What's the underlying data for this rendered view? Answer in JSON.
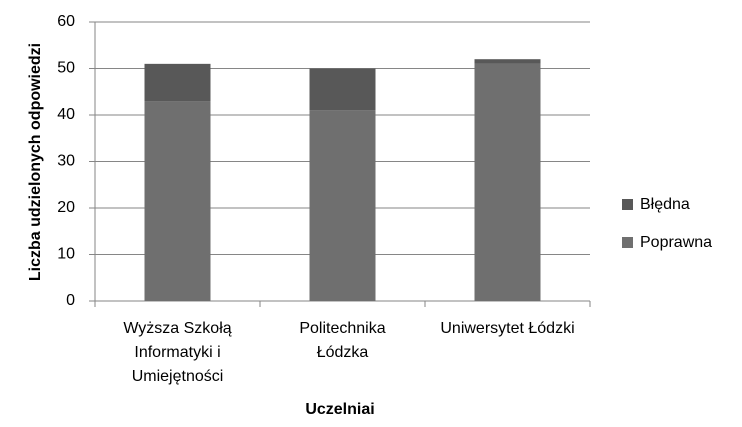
{
  "chart_data": {
    "type": "stacked-bar",
    "categories": [
      "Wyższa Szkołą Informatyki i Umiejętności",
      "Politechnika Łódzka",
      "Uniwersytet Łódzki"
    ],
    "series": [
      {
        "name": "Poprawna",
        "color": "#6f6f6f",
        "values": [
          43,
          41,
          51
        ]
      },
      {
        "name": "Błędna",
        "color": "#585858",
        "values": [
          8,
          9,
          1
        ]
      }
    ],
    "x_label": "Uczelniai",
    "y_label": "Liczba udzielonych odpowiedzi",
    "ylim": [
      0,
      60
    ],
    "yticks": [
      0,
      10,
      20,
      30,
      40,
      50,
      60
    ],
    "grid": true,
    "legend": "right"
  }
}
